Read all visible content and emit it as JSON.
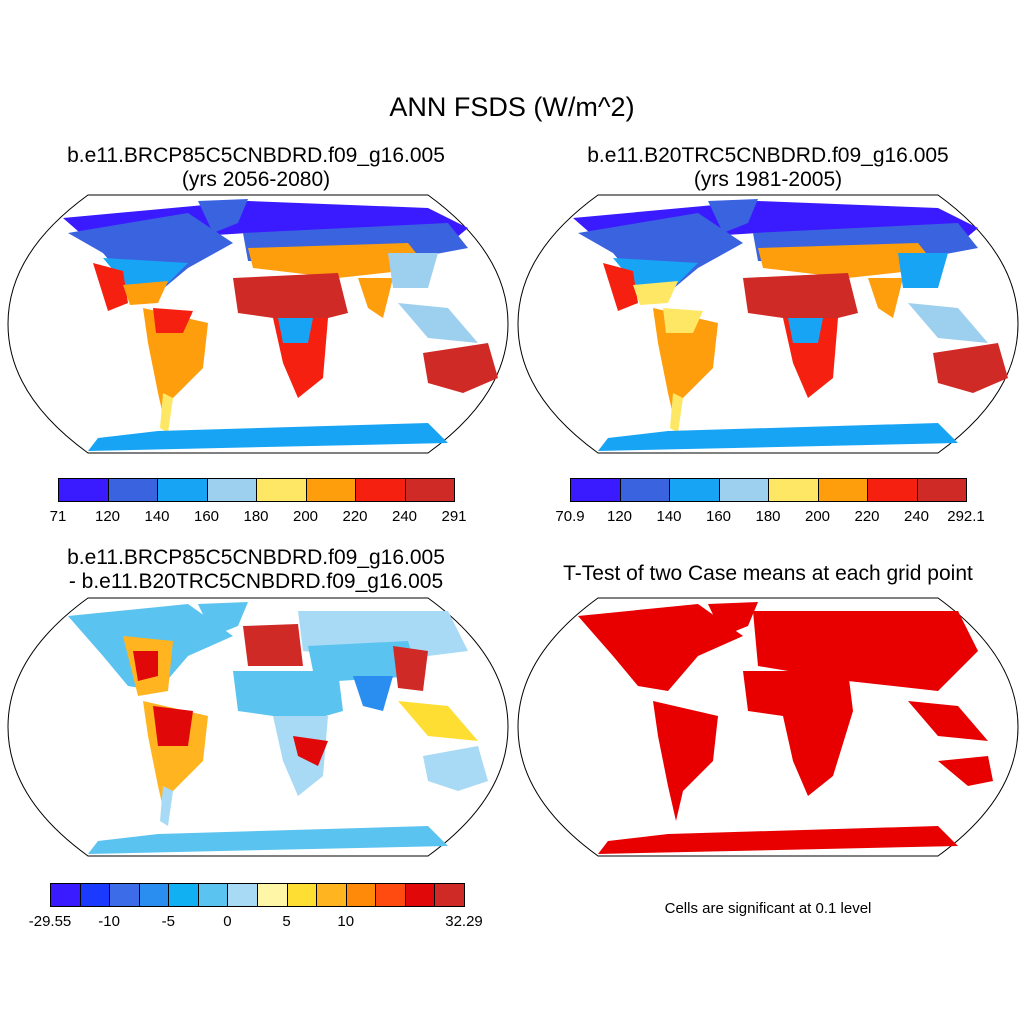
{
  "title": "ANN FSDS (W/m^2)",
  "panels": {
    "case1": {
      "name": "b.e11.BRCP85C5CNBDRD.f09_g16.005",
      "years": "(yrs 2056-2080)"
    },
    "case2": {
      "name": "b.e11.B20TRC5CNBDRD.f09_g16.005",
      "years": "(yrs 1981-2005)"
    },
    "diff": {
      "line1": "b.e11.BRCP85C5CNBDRD.f09_g16.005",
      "line2": "- b.e11.B20TRC5CNBDRD.f09_g16.005"
    },
    "ttest": {
      "title": "T-Test of two Case means at each grid point",
      "note": "Cells are significant at 0.1 level"
    }
  },
  "colorbars": {
    "case1": {
      "colors": [
        "#3a1aff",
        "#3a63e0",
        "#18a4f5",
        "#9dd0ee",
        "#ffe766",
        "#ff9e0d",
        "#f5200f",
        "#d02a26"
      ],
      "labels": [
        "71",
        "120",
        "140",
        "160",
        "180",
        "200",
        "220",
        "240",
        "291"
      ]
    },
    "case2": {
      "colors": [
        "#3a1aff",
        "#3a63e0",
        "#18a4f5",
        "#9dd0ee",
        "#ffe766",
        "#ff9e0d",
        "#f5200f",
        "#d02a26"
      ],
      "labels": [
        "70.9",
        "120",
        "140",
        "160",
        "180",
        "200",
        "220",
        "240",
        "292.1"
      ]
    },
    "diff": {
      "colors": [
        "#3a1aff",
        "#1a3aff",
        "#3c6ce8",
        "#2a8ef0",
        "#10b0f2",
        "#5bc3f0",
        "#a8daf5",
        "#fff6a8",
        "#ffde33",
        "#ffb420",
        "#ff8a0a",
        "#ff4a10",
        "#e00808",
        "#d02a26"
      ],
      "labels": [
        "-29.55",
        "",
        "-10",
        "",
        "-5",
        "",
        "0",
        "",
        "5",
        "",
        "10",
        "",
        "",
        "",
        "32.29"
      ]
    }
  },
  "colors": {
    "significant": "#e80000",
    "land_outline": "#000000"
  }
}
